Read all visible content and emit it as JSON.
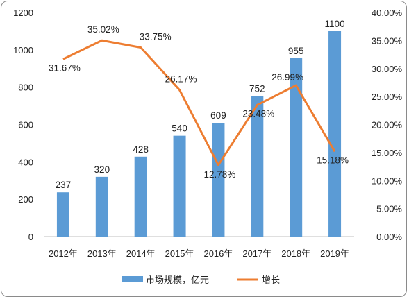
{
  "chart_data": {
    "type": "bar",
    "categories": [
      "2012年",
      "2013年",
      "2014年",
      "2015年",
      "2016年",
      "2017年",
      "2018年",
      "2019年"
    ],
    "series": [
      {
        "name": "市场规模，亿元",
        "type": "bar",
        "axis": "left",
        "color": "#5b9bd5",
        "values": [
          237,
          320,
          428,
          540,
          609,
          752,
          955,
          1100
        ],
        "labels": [
          "237",
          "320",
          "428",
          "540",
          "609",
          "752",
          "955",
          "1100"
        ]
      },
      {
        "name": "增长",
        "type": "line",
        "axis": "right",
        "color": "#ed7d31",
        "values": [
          31.67,
          35.02,
          33.75,
          26.17,
          12.78,
          23.48,
          26.99,
          15.18
        ],
        "labels": [
          "31.67%",
          "35.02%",
          "33.75%",
          "26.17%",
          "12.78%",
          "23.48%",
          "26.99%",
          "15.18%"
        ]
      }
    ],
    "y_left": {
      "ylim": [
        0,
        1200
      ],
      "ticks": [
        "0",
        "200",
        "400",
        "600",
        "800",
        "1000",
        "1200"
      ]
    },
    "y_right": {
      "ylim": [
        0,
        40
      ],
      "ticks": [
        "0.00%",
        "5.00%",
        "10.00%",
        "15.00%",
        "20.00%",
        "25.00%",
        "30.00%",
        "35.00%",
        "40.00%"
      ]
    },
    "grid": false,
    "legend": "bottom"
  }
}
